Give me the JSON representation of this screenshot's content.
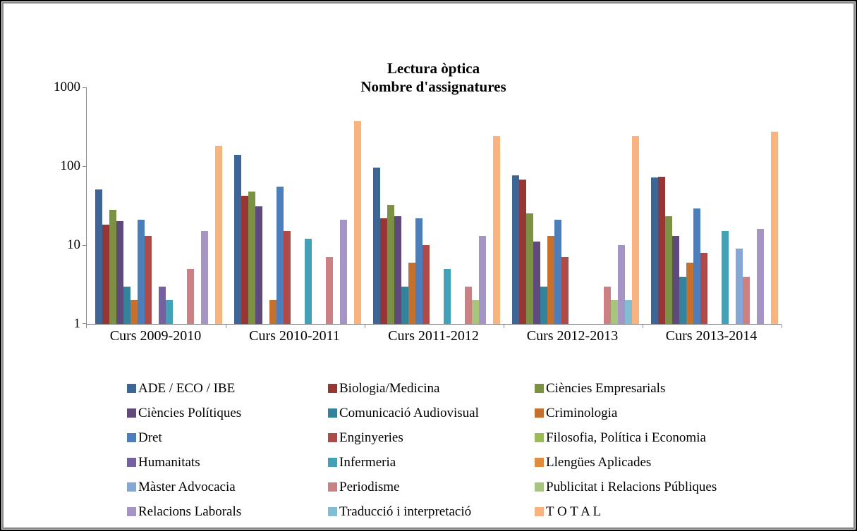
{
  "window": {
    "background": "#FFFFFF",
    "outer_border_color": "#000000",
    "inner_border_color": "#8C8C8C"
  },
  "chart_data": {
    "type": "bar",
    "title_lines": [
      "Lectura òptica",
      "Nombre d'assignatures"
    ],
    "scale": "log10",
    "ylim": [
      1,
      1000
    ],
    "y_ticks": [
      "1",
      "10",
      "100",
      "1000"
    ],
    "grid": false,
    "legend_position": "bottom",
    "axis_color": "#898989",
    "categories": [
      "Curs 2009-2010",
      "Curs 2010-2011",
      "Curs 2011-2012",
      "Curs 2012-2013",
      "Curs 2013-2014"
    ],
    "series": [
      {
        "name": "ADE / ECO / IBE",
        "color": "#3D6596",
        "values": [
          51,
          140,
          96,
          76,
          72
        ]
      },
      {
        "name": "Biologia/Medicina",
        "color": "#973735",
        "values": [
          18,
          42,
          22,
          67,
          73
        ]
      },
      {
        "name": "Ciències Empresarials",
        "color": "#7B9143",
        "values": [
          28,
          48,
          32,
          25,
          23
        ]
      },
      {
        "name": "Ciències Polítiques",
        "color": "#5F4A7B",
        "values": [
          20,
          31,
          23,
          11,
          13
        ]
      },
      {
        "name": "Comunicació Audiovisual",
        "color": "#31849B",
        "values": [
          3,
          0,
          3,
          3,
          4
        ]
      },
      {
        "name": "Criminologia",
        "color": "#C4702E",
        "values": [
          2,
          2,
          6,
          13,
          6
        ]
      },
      {
        "name": "Dret",
        "color": "#4C7EBB",
        "values": [
          21,
          55,
          22,
          21,
          29
        ]
      },
      {
        "name": "Enginyeries",
        "color": "#AE4B48",
        "values": [
          13,
          15,
          10,
          7,
          8
        ]
      },
      {
        "name": "Filosofia, Política i Economia",
        "color": "#9BBB59",
        "values": [
          0,
          0,
          0,
          0,
          0
        ]
      },
      {
        "name": "Humanitats",
        "color": "#7560A0",
        "values": [
          3,
          0,
          0,
          0,
          0
        ]
      },
      {
        "name": "Infermeria",
        "color": "#41A1B7",
        "values": [
          2,
          12,
          5,
          0,
          15
        ]
      },
      {
        "name": "Llengües Aplicades",
        "color": "#E18B3F",
        "values": [
          0,
          0,
          0,
          0,
          0
        ]
      },
      {
        "name": "Màster Advocacia",
        "color": "#85A7D7",
        "values": [
          0,
          0,
          0,
          0,
          9
        ]
      },
      {
        "name": "Periodisme",
        "color": "#CB8184",
        "values": [
          5,
          7,
          3,
          3,
          4
        ]
      },
      {
        "name": "Publicitat i Relacions Públiques",
        "color": "#A8C57E",
        "values": [
          0,
          0,
          2,
          2,
          0
        ]
      },
      {
        "name": "Relacions Laborals",
        "color": "#A495C5",
        "values": [
          15,
          21,
          13,
          10,
          16
        ]
      },
      {
        "name": "Traducció i interpretació",
        "color": "#81BED3",
        "values": [
          0,
          0,
          0,
          2,
          0
        ]
      },
      {
        "name": "T O T A L",
        "color": "#F9B37E",
        "values": [
          180,
          375,
          240,
          244,
          275
        ]
      }
    ]
  }
}
